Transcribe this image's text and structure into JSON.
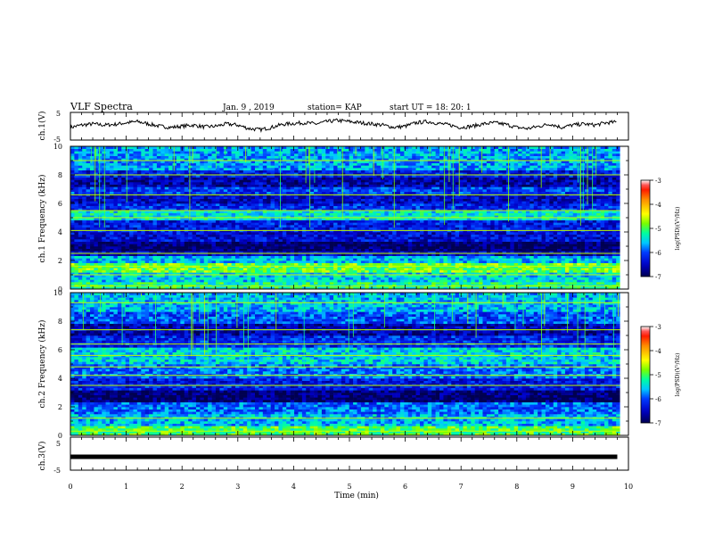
{
  "header": {
    "title": "VLF Spectra",
    "date": "Jan. 9 , 2019",
    "station": "station= KAP",
    "start": "start UT = 18: 20: 1"
  },
  "colorbar": {
    "label": "log(PSD)(V²/Hz)",
    "ticks": [
      "-3",
      "-4",
      "-5",
      "-6",
      "-7"
    ],
    "colors": [
      "#ffffff",
      "#ff0000",
      "#ffa500",
      "#ffff00",
      "#00ff00",
      "#00ffff",
      "#0000ff",
      "#000066"
    ]
  },
  "chart_data": [
    {
      "type": "line",
      "name": "ch1-voltage",
      "ylabel": "ch.1(V)",
      "ylim": [
        -5,
        5
      ],
      "yticks": [
        "5",
        "-5"
      ],
      "xlim": [
        0,
        10
      ],
      "x": [
        0,
        0.2,
        0.4,
        0.6,
        0.8,
        1.0,
        1.2,
        1.4,
        1.6,
        1.8,
        2.0,
        2.2,
        2.4,
        2.6,
        2.8,
        3.0,
        3.2,
        3.4,
        3.6,
        3.8,
        4.0,
        4.2,
        4.4,
        4.6,
        4.8,
        5.0,
        5.2,
        5.4,
        5.6,
        5.8,
        6.0,
        6.2,
        6.4,
        6.6,
        6.8,
        7.0,
        7.2,
        7.4,
        7.6,
        7.8,
        8.0,
        8.2,
        8.4,
        8.6,
        8.8,
        9.0,
        9.2,
        9.4,
        9.6,
        9.8
      ],
      "values": [
        -0.5,
        0.5,
        1.0,
        0.5,
        0.8,
        1.5,
        2.0,
        1.0,
        0.0,
        -0.5,
        0.0,
        0.5,
        -0.3,
        0.0,
        1.0,
        0.5,
        -1.0,
        -1.5,
        -0.5,
        0.8,
        1.2,
        1.5,
        1.0,
        2.0,
        2.5,
        2.0,
        1.5,
        1.0,
        0.5,
        -0.5,
        0.0,
        1.5,
        2.0,
        1.2,
        0.5,
        -0.5,
        0.0,
        1.0,
        1.5,
        0.8,
        -0.5,
        -1.0,
        0.0,
        1.0,
        -0.5,
        0.5,
        1.0,
        0.5,
        1.5,
        1.8
      ]
    },
    {
      "type": "heatmap",
      "name": "ch1-spectrogram",
      "ylabel": "ch.1 Frequency (kHz)",
      "ylim": [
        0,
        10
      ],
      "yticks": [
        "0",
        "2",
        "4",
        "6",
        "8",
        "10"
      ],
      "xlim": [
        0,
        10
      ],
      "zlim": [
        -7,
        -3
      ],
      "bands": [
        {
          "from": 0.0,
          "to": 0.5,
          "level": -5.2
        },
        {
          "from": 0.5,
          "to": 1.2,
          "level": -5.5
        },
        {
          "from": 1.2,
          "to": 1.8,
          "level": -4.9
        },
        {
          "from": 1.8,
          "to": 2.4,
          "level": -5.6
        },
        {
          "from": 2.4,
          "to": 2.6,
          "level": -6.5
        },
        {
          "from": 2.6,
          "to": 3.4,
          "level": -6.9
        },
        {
          "from": 3.4,
          "to": 4.0,
          "level": -6.4
        },
        {
          "from": 4.0,
          "to": 4.8,
          "level": -6.3
        },
        {
          "from": 4.8,
          "to": 5.5,
          "level": -5.4
        },
        {
          "from": 5.5,
          "to": 6.0,
          "level": -6.2
        },
        {
          "from": 6.0,
          "to": 6.6,
          "level": -6.5
        },
        {
          "from": 6.6,
          "to": 7.2,
          "level": -6.1
        },
        {
          "from": 7.2,
          "to": 7.8,
          "level": -6.6
        },
        {
          "from": 7.8,
          "to": 8.4,
          "level": -6.3
        },
        {
          "from": 8.4,
          "to": 10.0,
          "level": -5.7
        }
      ],
      "lines_khz": [
        0.2,
        1.0,
        1.6,
        2.5,
        4.1,
        5.0,
        5.5,
        6.6,
        8.0,
        9.0
      ]
    },
    {
      "type": "heatmap",
      "name": "ch2-spectrogram",
      "ylabel": "ch.2 Frequency (kHz)",
      "ylim": [
        0,
        10
      ],
      "yticks": [
        "0",
        "2",
        "4",
        "6",
        "8",
        "10"
      ],
      "xlim": [
        0,
        10
      ],
      "zlim": [
        -7,
        -3
      ],
      "bands": [
        {
          "from": 0.0,
          "to": 0.6,
          "level": -5.0
        },
        {
          "from": 0.6,
          "to": 1.5,
          "level": -5.6
        },
        {
          "from": 1.5,
          "to": 2.4,
          "level": -5.9
        },
        {
          "from": 2.4,
          "to": 3.2,
          "level": -6.9
        },
        {
          "from": 3.2,
          "to": 4.0,
          "level": -6.3
        },
        {
          "from": 4.0,
          "to": 5.0,
          "level": -5.9
        },
        {
          "from": 5.0,
          "to": 6.2,
          "level": -5.5
        },
        {
          "from": 6.2,
          "to": 7.0,
          "level": -6.2
        },
        {
          "from": 7.0,
          "to": 7.8,
          "level": -6.6
        },
        {
          "from": 7.8,
          "to": 8.6,
          "level": -6.0
        },
        {
          "from": 8.6,
          "to": 10.0,
          "level": -5.6
        }
      ],
      "lines_khz": [
        0.3,
        1.2,
        3.5,
        4.2,
        4.8,
        5.6,
        6.4,
        7.4,
        9.3
      ]
    },
    {
      "type": "line",
      "name": "ch3-voltage",
      "ylabel": "ch.3(V)",
      "ylim": [
        -5,
        5
      ],
      "yticks": [
        "5",
        "-5"
      ],
      "xlim": [
        0,
        9.8
      ],
      "x": [
        0,
        9.8
      ],
      "values": [
        0,
        0
      ]
    }
  ],
  "xaxis": {
    "label": "Time (min)",
    "ticks": [
      "0",
      "1",
      "2",
      "3",
      "4",
      "5",
      "6",
      "7",
      "8",
      "9",
      "10"
    ]
  }
}
